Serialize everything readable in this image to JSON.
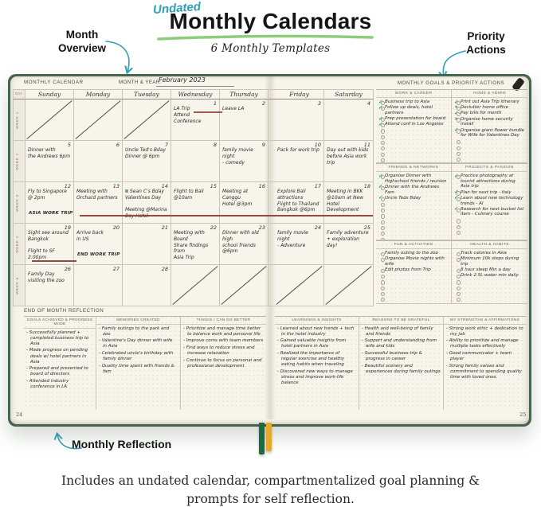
{
  "header": {
    "handwritten_label": "Undated",
    "title": "Monthly Calendars",
    "subtitle": "6 Monthly Templates"
  },
  "callouts": {
    "month_overview": "Month Overview",
    "priority_actions": "Priority Actions",
    "monthly_reflection": "Monthly Reflection"
  },
  "caption": "Includes an undated calendar, compartmentalized goal planning & prompts for self reflection.",
  "colors": {
    "accent_teal": "#2e9fb4",
    "underline_green": "#86ca73",
    "check_green": "#2f9e68",
    "trip_line_maroon": "#8e4a44",
    "ribbon_green": "#1a6b42",
    "ribbon_gold": "#e3ab2c",
    "page_cream": "#f6f4eb",
    "cover_green": "#48644f"
  },
  "planner": {
    "left_header": "MONTHLY CALENDAR",
    "month_year_label": "MONTH & YEAR:",
    "month_year_value": "February 2023",
    "day_col_label": "DAY",
    "page_left": "24",
    "page_right": "25",
    "day_headers": [
      "Sunday",
      "Monday",
      "Tuesday",
      "Wednesday",
      "Thursday",
      "Friday",
      "Saturday"
    ],
    "weeks": [
      {
        "label": "WEEK 1",
        "cells": [
          {
            "crossed": true
          },
          {
            "crossed": true
          },
          {
            "crossed": true
          },
          {
            "date": "1",
            "text": "LA Trip\nAttend Conference"
          },
          {
            "date": "2",
            "text": "Leave LA"
          },
          {
            "date": "3"
          },
          {
            "date": "4"
          }
        ]
      },
      {
        "label": "WEEK 2",
        "cells": [
          {
            "date": "5",
            "text": "Dinner with\nthe Andrews 6pm"
          },
          {
            "date": "6"
          },
          {
            "date": "7",
            "text": "Uncle Ted's Bday\nDinner @ 6pm"
          },
          {
            "date": "8"
          },
          {
            "date": "9",
            "text": "family movie night\n- comedy"
          },
          {
            "date": "10",
            "text": "Pack for work trip"
          },
          {
            "date": "11",
            "text": "Day out with kids\nbefore Asia work trip"
          }
        ]
      },
      {
        "label": "WEEK 3",
        "cells": [
          {
            "date": "12",
            "text": "Fly to Singapore\n@ 2pm",
            "footer": "ASIA WORK TRIP"
          },
          {
            "date": "13",
            "text": "Meeting with\nOrchard partners"
          },
          {
            "date": "14",
            "highlight": "Sean C's Bday",
            "text": "Valentines Day\n\nMeeting @Marina\nBay Hotel"
          },
          {
            "date": "15",
            "text": "Flight to Bali\n@10am"
          },
          {
            "date": "16",
            "text": "Meeting at Canggu\nHotel @3pm"
          },
          {
            "date": "17",
            "text": "Explore Bali\nattractions\nFlight to Thailand\nBangkok @6pm"
          },
          {
            "date": "18",
            "text": "Meeting in BKK\n@10am at New\nHotel Development"
          }
        ]
      },
      {
        "label": "WEEK 4",
        "cells": [
          {
            "date": "19",
            "text": "Sight see around\nBangkok\n\nFlight to SF 2:00pm"
          },
          {
            "date": "20",
            "text": "Arrive back\nin US",
            "footer": "END WORK TRIP"
          },
          {
            "date": "21"
          },
          {
            "date": "22",
            "text": "Meeting with Board\nShare findings from\nAsia Trip"
          },
          {
            "date": "23",
            "text": "Dinner with old high\nschool friends @6pm"
          },
          {
            "date": "24",
            "text": "family movie night\n- Adventure"
          },
          {
            "date": "25",
            "text": "Family adventure\n+ exploration day!"
          }
        ]
      },
      {
        "label": "WEEK 5",
        "cells": [
          {
            "date": "26",
            "text": "Family Day\nvisiting the zoo"
          },
          {
            "date": "27"
          },
          {
            "date": "28"
          },
          {
            "crossed": true
          },
          {
            "crossed": true
          },
          {
            "crossed": true
          },
          {
            "crossed": true
          }
        ]
      }
    ],
    "goals": {
      "title": "MONTHLY GOALS & PRIORITY ACTIONS",
      "boxes": [
        {
          "title": "WORK & CAREER",
          "empty": 7,
          "items": [
            {
              "m": "c",
              "t": "Business trip to Asia"
            },
            {
              "m": "c",
              "t": "Follow up deals, hotel partners"
            },
            {
              "m": "c",
              "t": "Prep presentation for board"
            },
            {
              "m": "c",
              "t": "Attend conf in Los Angeles"
            }
          ]
        },
        {
          "title": "HOME & ADMIN",
          "empty": 4,
          "items": [
            {
              "m": "c",
              "t": "Print out Asia Trip itinerary"
            },
            {
              "m": "a",
              "t": "Declutter home office"
            },
            {
              "m": "c",
              "t": "Pay bills for month"
            },
            {
              "m": "a",
              "t": "Organise home security install"
            },
            {
              "m": "c",
              "t": "Organise giant flower bundle for Wife for Valentines Day"
            }
          ]
        },
        {
          "title": "FRIENDS & NETWORKS",
          "empty": 8,
          "items": [
            {
              "m": "c",
              "t": "Organise Dinner with Highschool friends / reunion"
            },
            {
              "m": "c",
              "t": "Dinner with the Andrews Fam"
            },
            {
              "m": "c",
              "t": "Uncle Teds Bday"
            }
          ]
        },
        {
          "title": "PROJECTS & PASSION",
          "empty": 3,
          "items": [
            {
              "m": "c",
              "t": "Practice photography at tourist attractions during Asia trip"
            },
            {
              "m": "c",
              "t": "Plan for next trip - Italy"
            },
            {
              "m": "c",
              "t": "Learn about new technology trends - AI"
            },
            {
              "m": "c",
              "t": "Research for next bucket list item - Culinary course"
            }
          ]
        },
        {
          "title": "FUN & ACTIVITIES",
          "empty": 6,
          "items": [
            {
              "m": "n",
              "t": "Family outing to the zoo"
            },
            {
              "m": "n",
              "t": "Organise Movie nights with wife"
            },
            {
              "m": "n",
              "t": "Edit photos from Trip"
            }
          ]
        },
        {
          "title": "HEALTH & HABITS",
          "empty": 5,
          "items": [
            {
              "m": "n",
              "t": "Track calories in Asia"
            },
            {
              "m": "n",
              "t": "Minimum 10k steps during trip"
            },
            {
              "m": "n",
              "t": "8 hour sleep Min a day"
            },
            {
              "m": "n",
              "t": "Drink 2.5L water min daily"
            }
          ]
        }
      ]
    },
    "reflection": {
      "title": "END OF MONTH REFLECTION",
      "left_columns": [
        {
          "title": "GOALS ACHIEVED & PROGRESS MADE",
          "items": [
            "Successfully planned + completed business trip to Asia",
            "Made progress on pending deals w/ hotel partners in Asia",
            "Prepared and presented to board of directors",
            "Attended industry conference in LA"
          ]
        },
        {
          "title": "MEMORIES CREATED",
          "items": [
            "Family outings to the park and zoo",
            "Valentine's Day dinner with wife in Asia",
            "Celebrated uncle's birthday with family dinner",
            "Quality time spent with friends & fam"
          ]
        },
        {
          "title": "THINGS I CAN DO BETTER",
          "items": [
            "Prioritize and manage time better to balance work and personal life",
            "Improve coms with team members",
            "Find ways to reduce stress and increase relaxation",
            "Continue to focus on personal and professional development"
          ]
        }
      ],
      "right_columns": [
        {
          "title": "LEARNINGS & INSIGHTS",
          "items": [
            "Learned about new trends + tech in the hotel industry",
            "Gained valuable insights from hotel partners in Asia",
            "Realized the importance of regular exercise and healthy eating habits when traveling",
            "Discovered new ways to manage stress and improve work-life balance"
          ]
        },
        {
          "title": "REASONS TO BE GRATEFUL",
          "items": [
            "Health and well-being of family and friends",
            "Support and understanding from wife and kids",
            "Successful business trip & progress in career",
            "Beautiful scenery and experiences during family outings"
          ]
        },
        {
          "title": "MY STRENGTHS & AFFIRMATIONS",
          "items": [
            "Strong work ethic + dedication to my job",
            "Ability to prioritize and manage multiple tasks effectively",
            "Good communicator + team player",
            "Strong family values and commitment to spending quality time with loved ones."
          ]
        }
      ]
    }
  }
}
